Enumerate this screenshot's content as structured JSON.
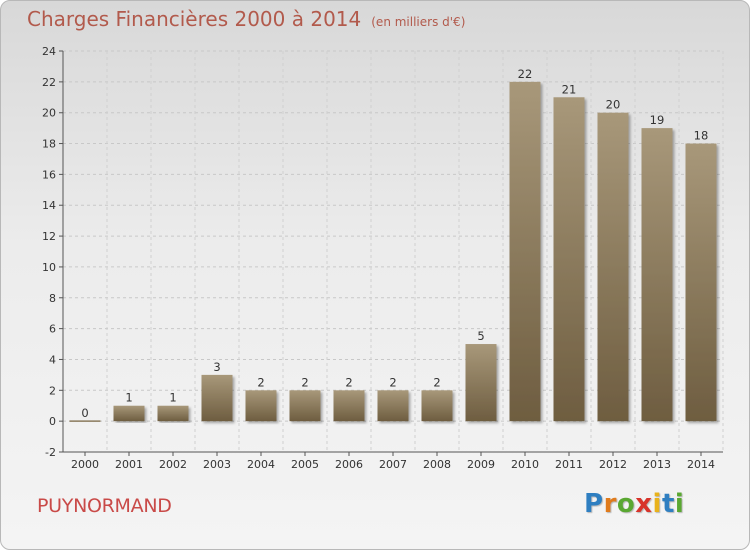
{
  "title": "Charges Financières 2000 à 2014",
  "unit": "(en milliers d'€)",
  "place": "PUYNORMAND",
  "logo": [
    "P",
    "r",
    "o",
    "x",
    "i",
    "t",
    "i"
  ],
  "colors": {
    "title": "#b25a4c",
    "place": "#c94a48",
    "bar_light": "#a8987a",
    "bar_dark": "#6e5d40",
    "logo": [
      "#2f7fc1",
      "#e07b1c",
      "#5aa832",
      "#d8342b",
      "#e8b21c",
      "#2f7fc1",
      "#5aa832"
    ]
  },
  "chart_data": {
    "type": "bar",
    "categories": [
      "2000",
      "2001",
      "2002",
      "2003",
      "2004",
      "2005",
      "2006",
      "2007",
      "2008",
      "2009",
      "2010",
      "2011",
      "2012",
      "2013",
      "2014"
    ],
    "values": [
      0,
      1,
      1,
      3,
      2,
      2,
      2,
      2,
      2,
      5,
      22,
      21,
      20,
      19,
      18
    ],
    "title": "Charges Financières 2000 à 2014",
    "ylim": [
      -2,
      24
    ],
    "yticks": [
      -2,
      0,
      2,
      4,
      6,
      8,
      10,
      12,
      14,
      16,
      18,
      20,
      22,
      24
    ],
    "grid": true
  }
}
